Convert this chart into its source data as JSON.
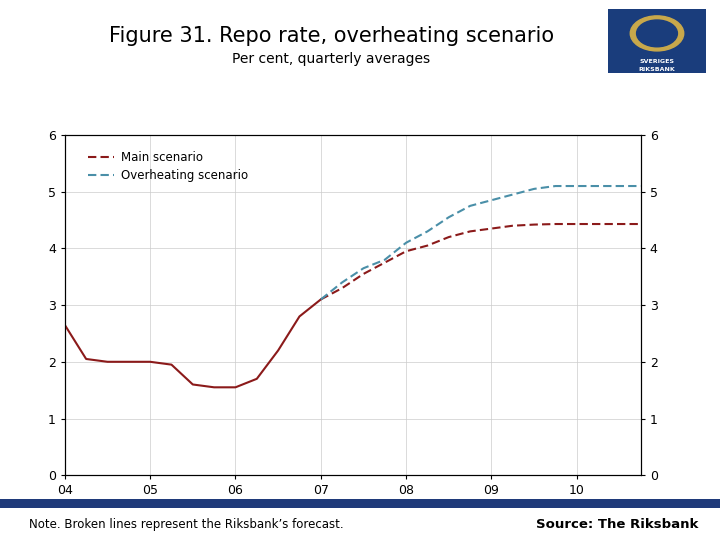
{
  "title": "Figure 31. Repo rate, overheating scenario",
  "subtitle": "Per cent, quarterly averages",
  "note": "Note. Broken lines represent the Riksbank’s forecast.",
  "source": "Source: The Riksbank",
  "xlim": [
    2004.0,
    2010.75
  ],
  "ylim": [
    0,
    6
  ],
  "yticks": [
    0,
    1,
    2,
    3,
    4,
    5,
    6
  ],
  "xtick_labels": [
    "04",
    "05",
    "06",
    "07",
    "08",
    "09",
    "10"
  ],
  "xtick_positions": [
    2004,
    2005,
    2006,
    2007,
    2008,
    2009,
    2010
  ],
  "main_solid_x": [
    2004.0,
    2004.25,
    2004.5,
    2004.75,
    2005.0,
    2005.25,
    2005.5,
    2005.75,
    2006.0,
    2006.25,
    2006.5,
    2006.75,
    2007.0
  ],
  "main_solid_y": [
    2.65,
    2.05,
    2.0,
    2.0,
    2.0,
    1.95,
    1.6,
    1.55,
    1.55,
    1.7,
    2.2,
    2.8,
    3.1
  ],
  "main_dashed_x": [
    2007.0,
    2007.25,
    2007.5,
    2007.75,
    2008.0,
    2008.25,
    2008.5,
    2008.75,
    2009.0,
    2009.25,
    2009.5,
    2009.75,
    2010.0,
    2010.25,
    2010.5,
    2010.75
  ],
  "main_dashed_y": [
    3.1,
    3.3,
    3.55,
    3.75,
    3.95,
    4.05,
    4.2,
    4.3,
    4.35,
    4.4,
    4.42,
    4.43,
    4.43,
    4.43,
    4.43,
    4.43
  ],
  "overheat_dashed_x": [
    2007.0,
    2007.25,
    2007.5,
    2007.75,
    2008.0,
    2008.25,
    2008.5,
    2008.75,
    2009.0,
    2009.25,
    2009.5,
    2009.75,
    2010.0,
    2010.25,
    2010.5,
    2010.75
  ],
  "overheat_dashed_y": [
    3.1,
    3.4,
    3.65,
    3.8,
    4.1,
    4.3,
    4.55,
    4.75,
    4.85,
    4.95,
    5.05,
    5.1,
    5.1,
    5.1,
    5.1,
    5.1
  ],
  "main_color": "#8B1A1A",
  "overheat_color": "#4A8FA8",
  "background_color": "#FFFFFF",
  "bar_color": "#1F3A7A",
  "title_fontsize": 15,
  "subtitle_fontsize": 10,
  "note_fontsize": 8.5,
  "source_fontsize": 9.5
}
